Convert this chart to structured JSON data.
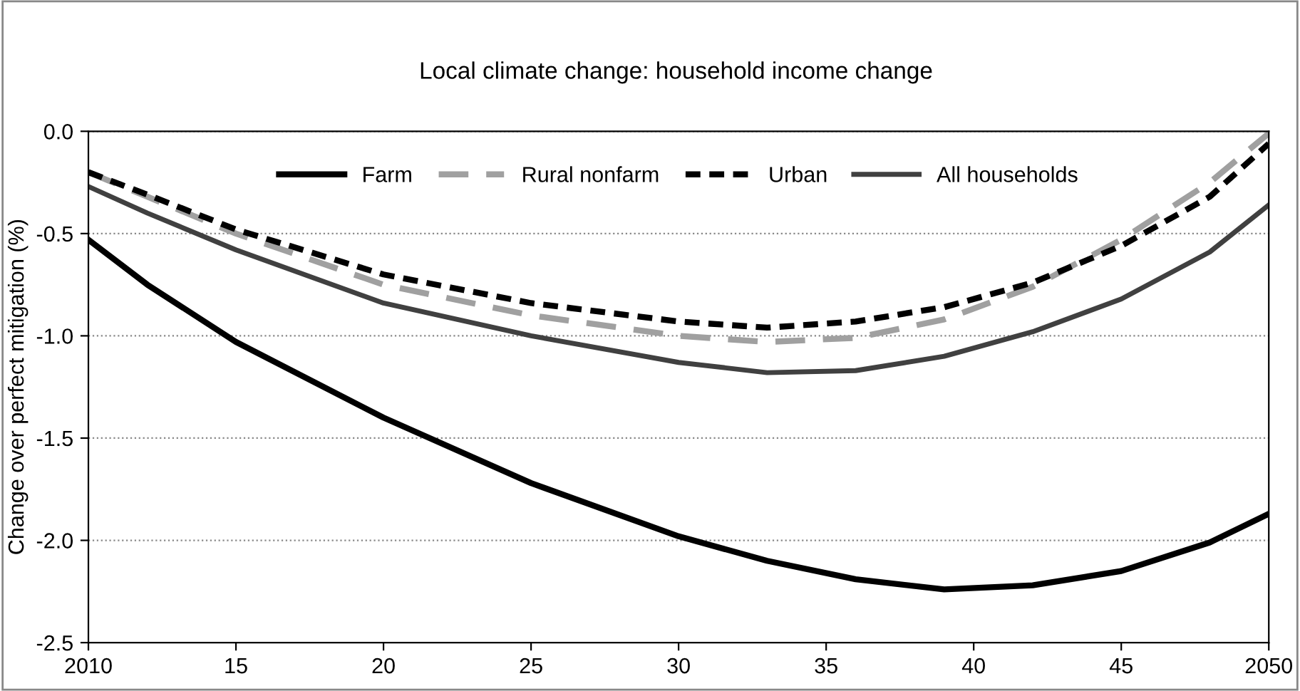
{
  "chart_data": {
    "type": "line",
    "title": "Local climate change: household income change",
    "ylabel": "Change over perfect mitigation (%)",
    "x": [
      2010,
      2012,
      2015,
      2020,
      2025,
      2030,
      2033,
      2036,
      2039,
      2042,
      2045,
      2048,
      2050
    ],
    "series": [
      {
        "name": "Farm",
        "color": "#000000",
        "line_style": "solid",
        "values": [
          -0.53,
          -0.75,
          -1.03,
          -1.4,
          -1.72,
          -1.98,
          -2.1,
          -2.19,
          -2.24,
          -2.22,
          -2.15,
          -2.01,
          -1.87
        ]
      },
      {
        "name": "Rural nonfarm",
        "color": "#a0a0a0",
        "line_style": "dashed",
        "values": [
          -0.2,
          -0.32,
          -0.5,
          -0.75,
          -0.9,
          -1.0,
          -1.03,
          -1.01,
          -0.92,
          -0.76,
          -0.53,
          -0.25,
          -0.01
        ]
      },
      {
        "name": "Urban",
        "color": "#000000",
        "line_style": "dotted",
        "values": [
          -0.2,
          -0.31,
          -0.48,
          -0.7,
          -0.84,
          -0.93,
          -0.96,
          -0.93,
          -0.86,
          -0.74,
          -0.56,
          -0.32,
          -0.06
        ]
      },
      {
        "name": "All households",
        "color": "#404040",
        "line_style": "solid",
        "values": [
          -0.27,
          -0.4,
          -0.58,
          -0.84,
          -1.0,
          -1.13,
          -1.18,
          -1.17,
          -1.1,
          -0.98,
          -0.82,
          -0.59,
          -0.36
        ]
      }
    ],
    "xlim": [
      2010,
      2050
    ],
    "xticks": [
      2010,
      {
        "value": 2015,
        "label": "15"
      },
      {
        "value": 2020,
        "label": "20"
      },
      {
        "value": 2025,
        "label": "25"
      },
      {
        "value": 2030,
        "label": "30"
      },
      {
        "value": 2035,
        "label": "35"
      },
      {
        "value": 2040,
        "label": "40"
      },
      {
        "value": 2045,
        "label": "45"
      },
      2050
    ],
    "ylim": [
      -2.5,
      0
    ],
    "yticks": [
      {
        "value": 0,
        "label": "0.0"
      },
      -0.5,
      {
        "value": -1,
        "label": "-1.0"
      },
      -1.5,
      {
        "value": -2,
        "label": "-2.0"
      },
      -2.5
    ],
    "grid": "y",
    "legend": "top",
    "marker": "none"
  }
}
